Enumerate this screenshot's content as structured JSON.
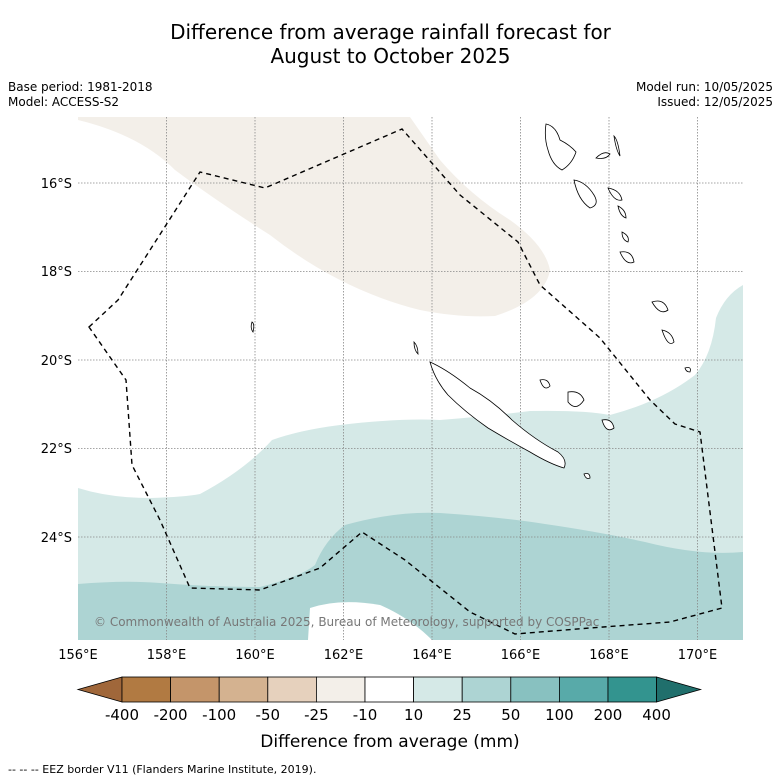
{
  "title_line1": "Difference from average rainfall forecast for",
  "title_line2": "August to October 2025",
  "base_period": "Base period: 1981-2018",
  "model": "Model: ACCESS-S2",
  "model_run": "Model run: 10/05/2025",
  "issued": "Issued: 12/05/2025",
  "copyright": "© Commonwealth of Australia 2025, Bureau of Meteorology, supported by COSPPac",
  "lon_labels": [
    "156°E",
    "158°E",
    "160°E",
    "162°E",
    "164°E",
    "166°E",
    "168°E",
    "170°E"
  ],
  "lat_labels": [
    "16°S",
    "18°S",
    "20°S",
    "22°S",
    "24°S"
  ],
  "colorbar": {
    "title": "Difference from average (mm)",
    "labels": [
      "-400",
      "-200",
      "-100",
      "-50",
      "-25",
      "-10",
      "10",
      "25",
      "50",
      "100",
      "200",
      "400"
    ],
    "colors": [
      "#a0673a",
      "#b17a42",
      "#c4956a",
      "#d4b290",
      "#e6d1bd",
      "#f3efe9",
      "#ffffff",
      "#d5e9e7",
      "#add4d3",
      "#88c1c0",
      "#58aaa9",
      "#33948f",
      "#206f6c"
    ]
  },
  "footnote": "-- -- -- EEZ border V11 (Flanders Marine Institute, 2019)."
}
